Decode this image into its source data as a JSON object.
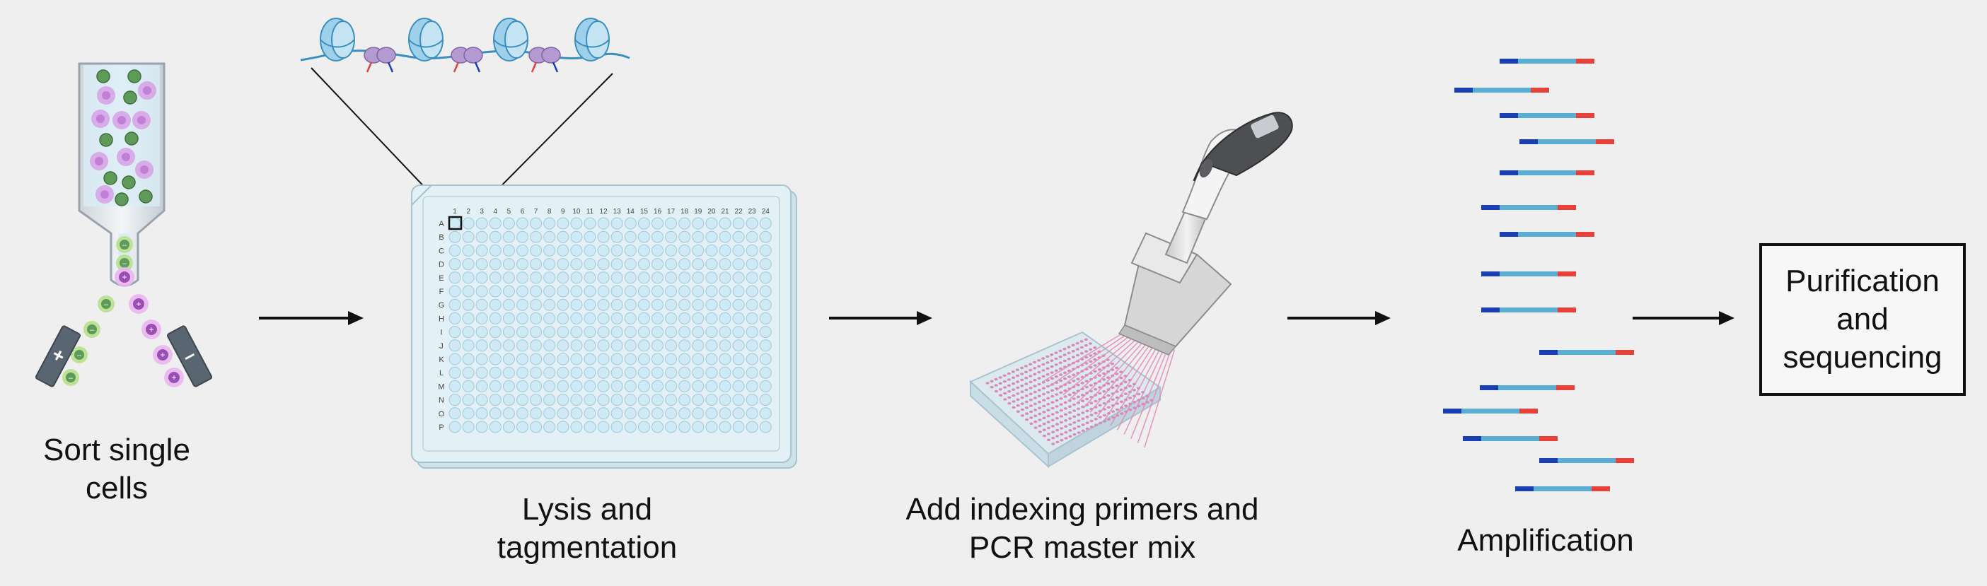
{
  "steps": [
    {
      "id": "sort",
      "lines": [
        "Sort single",
        "cells"
      ]
    },
    {
      "id": "lysis",
      "lines": [
        "Lysis and",
        "tagmentation"
      ]
    },
    {
      "id": "primers",
      "lines": [
        "Add indexing primers and",
        "PCR master mix"
      ]
    },
    {
      "id": "amplification",
      "lines": [
        "Amplification"
      ]
    },
    {
      "id": "purification",
      "lines": [
        "Purification",
        "and",
        "sequencing"
      ]
    }
  ],
  "plate": {
    "columns": [
      "1",
      "2",
      "3",
      "4",
      "5",
      "6",
      "7",
      "8",
      "9",
      "10",
      "11",
      "12",
      "13",
      "14",
      "15",
      "16",
      "17",
      "18",
      "19",
      "20",
      "21",
      "22",
      "23",
      "24"
    ],
    "rows": [
      "A",
      "B",
      "C",
      "D",
      "E",
      "F",
      "G",
      "H",
      "I",
      "J",
      "K",
      "L",
      "M",
      "N",
      "O",
      "P"
    ]
  },
  "sorter": {
    "signs": {
      "positive": "+",
      "negative": "–"
    }
  },
  "colors": {
    "background": "#efefef",
    "green_cell": "#5e9a58",
    "purple_cell": "#d7a0e6",
    "well": "#cfe9f5",
    "plate": "#dfeef3",
    "fragment_body": "#5aaed3",
    "fragment_left": "#1a3fb5",
    "fragment_right": "#e8413a",
    "pipette_channels": "#e58ab5",
    "arrow": "#111111"
  },
  "icons": {
    "arrow": "right-arrow-icon",
    "pipette": "multichannel-pipette-icon",
    "nucleosome": "nucleosome-icon",
    "transposase": "transposase-icon",
    "deflection_plate": "deflection-plate-icon"
  }
}
